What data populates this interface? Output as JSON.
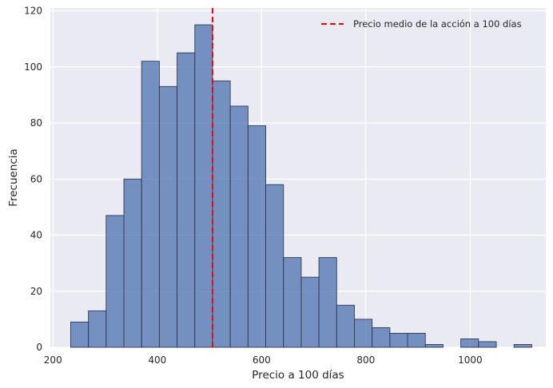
{
  "chart_data": {
    "type": "bar",
    "xlabel": "Precio a 100 días",
    "ylabel": "Frecuencia",
    "xlim": [
      195,
      1145
    ],
    "ylim": [
      0,
      121
    ],
    "xticks": [
      200,
      400,
      600,
      800,
      1000
    ],
    "yticks": [
      0,
      20,
      40,
      60,
      80,
      100,
      120
    ],
    "grid": true,
    "legend_position": "top-right",
    "bins": [
      {
        "x0": 234,
        "x1": 268,
        "count": 9
      },
      {
        "x0": 268,
        "x1": 302,
        "count": 13
      },
      {
        "x0": 302,
        "x1": 336,
        "count": 47
      },
      {
        "x0": 336,
        "x1": 370,
        "count": 60
      },
      {
        "x0": 370,
        "x1": 404,
        "count": 102
      },
      {
        "x0": 404,
        "x1": 438,
        "count": 93
      },
      {
        "x0": 438,
        "x1": 472,
        "count": 105
      },
      {
        "x0": 472,
        "x1": 506,
        "count": 115
      },
      {
        "x0": 506,
        "x1": 540,
        "count": 95
      },
      {
        "x0": 540,
        "x1": 574,
        "count": 86
      },
      {
        "x0": 574,
        "x1": 608,
        "count": 79
      },
      {
        "x0": 608,
        "x1": 642,
        "count": 58
      },
      {
        "x0": 642,
        "x1": 676,
        "count": 32
      },
      {
        "x0": 676,
        "x1": 710,
        "count": 25
      },
      {
        "x0": 710,
        "x1": 744,
        "count": 32
      },
      {
        "x0": 744,
        "x1": 778,
        "count": 15
      },
      {
        "x0": 778,
        "x1": 812,
        "count": 10
      },
      {
        "x0": 812,
        "x1": 846,
        "count": 7
      },
      {
        "x0": 846,
        "x1": 880,
        "count": 5
      },
      {
        "x0": 880,
        "x1": 914,
        "count": 5
      },
      {
        "x0": 914,
        "x1": 948,
        "count": 1
      },
      {
        "x0": 948,
        "x1": 982,
        "count": 0
      },
      {
        "x0": 982,
        "x1": 1016,
        "count": 3
      },
      {
        "x0": 1016,
        "x1": 1050,
        "count": 2
      },
      {
        "x0": 1050,
        "x1": 1084,
        "count": 0
      },
      {
        "x0": 1084,
        "x1": 1118,
        "count": 1
      }
    ],
    "mean_line": {
      "x": 506,
      "label": "Precio medio de la acción a 100 días"
    },
    "colors": {
      "background": "#eaeaf2",
      "grid": "#ffffff",
      "bar_fill": "#4c72b0",
      "bar_edge": "#2f3b52",
      "mean_line": "#ff0000"
    }
  }
}
